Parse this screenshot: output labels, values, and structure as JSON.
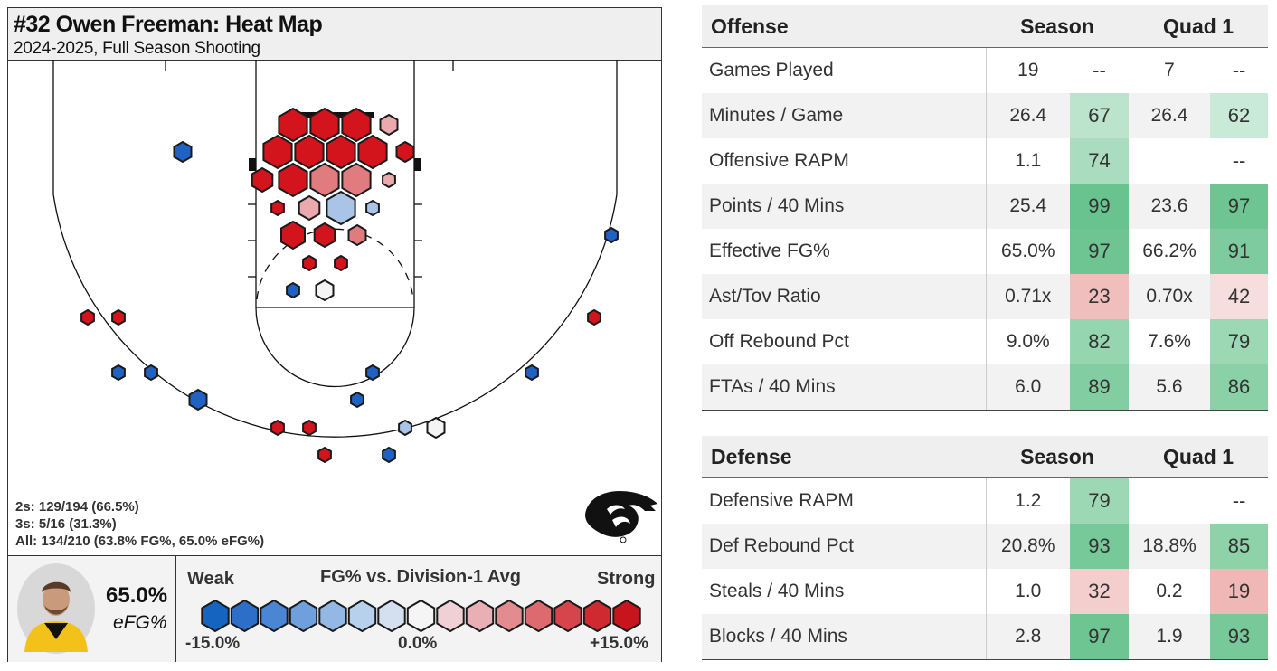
{
  "heatmap": {
    "title": "#32 Owen Freeman: Heat Map",
    "subtitle": "2024-2025, Full Season Shooting",
    "stats": {
      "twos": "2s: 129/194 (66.5%)",
      "threes": "3s: 5/16 (31.3%)",
      "all": "All: 134/210 (63.8% FG%, 65.0% eFG%)"
    },
    "efg_value": "65.0%",
    "efg_label": "eFG%",
    "legend": {
      "weak": "Weak",
      "title": "FG% vs. Division-1 Avg",
      "strong": "Strong",
      "min": "-15.0%",
      "mid": "0.0%",
      "max": "+15.0%",
      "colors": [
        "#1565c0",
        "#2d6fc8",
        "#4a86d4",
        "#6f9fdc",
        "#94b8e4",
        "#b7d0ec",
        "#d4e0ef",
        "#f5f5f5",
        "#f0d0d4",
        "#e8b0b4",
        "#e38c90",
        "#dc6a6f",
        "#d5454b",
        "#cf2a30",
        "#c8141c"
      ]
    },
    "shot_colors": {
      "red": "#d3141c",
      "medred": "#e07b80",
      "lightred": "#e9a9ad",
      "lightblue": "#a9c4e6",
      "blue": "#1f62c4",
      "white": "#f4f4f4"
    }
  },
  "chart_data": {
    "type": "heatmap",
    "title": "#32 Owen Freeman: Heat Map",
    "subtitle": "2024-2025, Full Season Shooting",
    "color_scale": {
      "label": "FG% vs. Division-1 Avg",
      "min": -15.0,
      "mid": 0.0,
      "max": 15.0,
      "low_label": "Weak",
      "high_label": "Strong"
    },
    "summary": [
      {
        "shot_type": "2s",
        "made": 129,
        "attempted": 194,
        "pct": 66.5
      },
      {
        "shot_type": "3s",
        "made": 5,
        "attempted": 16,
        "pct": 31.3
      },
      {
        "shot_type": "All",
        "made": 134,
        "attempted": 210,
        "fg_pct": 63.8,
        "efg_pct": 65.0
      }
    ]
  },
  "offense": {
    "header": {
      "label": "Offense",
      "season": "Season",
      "quad": "Quad 1"
    },
    "rows": [
      {
        "label": "Games Played",
        "season": "19",
        "season_pct": "--",
        "quad": "7",
        "quad_pct": "--"
      },
      {
        "label": "Minutes / Game",
        "season": "26.4",
        "season_pct": "67",
        "quad": "26.4",
        "quad_pct": "62"
      },
      {
        "label": "Offensive RAPM",
        "season": "1.1",
        "season_pct": "74",
        "quad": "",
        "quad_pct": "--"
      },
      {
        "label": "Points / 40 Mins",
        "season": "25.4",
        "season_pct": "99",
        "quad": "23.6",
        "quad_pct": "97"
      },
      {
        "label": "Effective FG%",
        "season": "65.0%",
        "season_pct": "97",
        "quad": "66.2%",
        "quad_pct": "91"
      },
      {
        "label": "Ast/Tov Ratio",
        "season": "0.71x",
        "season_pct": "23",
        "quad": "0.70x",
        "quad_pct": "42"
      },
      {
        "label": "Off Rebound Pct",
        "season": "9.0%",
        "season_pct": "82",
        "quad": "7.6%",
        "quad_pct": "79"
      },
      {
        "label": "FTAs / 40 Mins",
        "season": "6.0",
        "season_pct": "89",
        "quad": "5.6",
        "quad_pct": "86"
      }
    ]
  },
  "defense": {
    "header": {
      "label": "Defense",
      "season": "Season",
      "quad": "Quad 1"
    },
    "rows": [
      {
        "label": "Defensive RAPM",
        "season": "1.2",
        "season_pct": "79",
        "quad": "",
        "quad_pct": "--"
      },
      {
        "label": "Def Rebound Pct",
        "season": "20.8%",
        "season_pct": "93",
        "quad": "18.8%",
        "quad_pct": "85"
      },
      {
        "label": "Steals / 40 Mins",
        "season": "1.0",
        "season_pct": "32",
        "quad": "0.2",
        "quad_pct": "19"
      },
      {
        "label": "Blocks / 40 Mins",
        "season": "2.8",
        "season_pct": "97",
        "quad": "1.9",
        "quad_pct": "93"
      }
    ]
  }
}
